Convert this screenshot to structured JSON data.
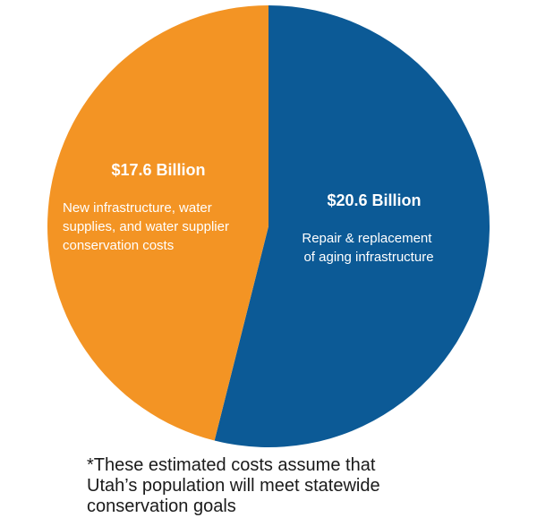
{
  "chart_data": {
    "type": "pie",
    "slices": [
      {
        "label": "Repair & replacement of aging infrastructure",
        "value": 20.6,
        "value_label": "$20.6 Billion",
        "label_lines": [
          "Repair & replacement",
          "of aging infrastructure"
        ],
        "color": "#0c5a96"
      },
      {
        "label": "New infrastructure, water supplies, and water supplier conservation costs",
        "value": 17.6,
        "value_label": "$17.6 Billion",
        "label_lines": [
          "New infrastructure, water",
          "supplies, and water supplier",
          "conservation costs"
        ],
        "color": "#f39424"
      }
    ],
    "unit": "Billion USD",
    "start_angle": "12 o'clock, clockwise",
    "legend": "none"
  },
  "footnote": {
    "lines": [
      "*These estimated costs assume that",
      "Utah’s population will meet statewide",
      "conservation goals"
    ]
  }
}
